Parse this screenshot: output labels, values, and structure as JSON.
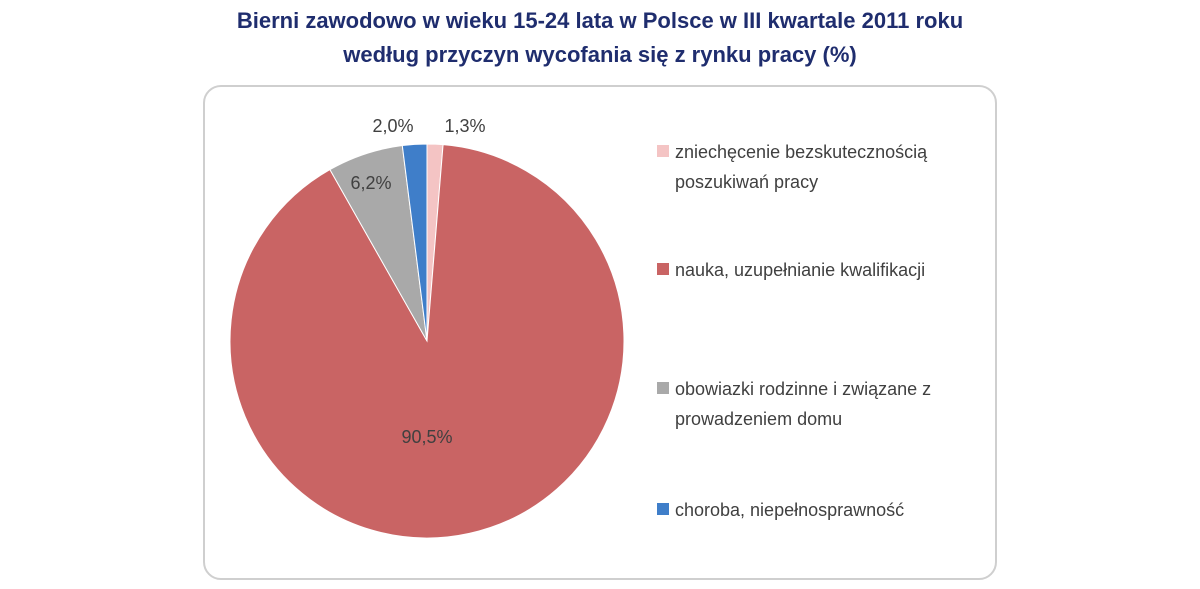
{
  "title": {
    "line1": "Bierni zawodowo w wieku 15-24 lata  w Polsce w III kwartale 2011 roku",
    "line2": "według przyczyn wycofania się z rynku pracy (%)"
  },
  "chart_data": {
    "type": "pie",
    "title": "Bierni zawodowo w wieku 15-24 lata  w Polsce w III kwartale 2011 roku według przyczyn wycofania się z rynku pracy (%)",
    "legend_position": "right",
    "slices": [
      {
        "label": "zniechęcenie bezskutecznością poszukiwań pracy",
        "value": 1.3,
        "display": "1,3%",
        "color": "#f4c4c4"
      },
      {
        "label": "nauka, uzupełnianie kwalifikacji",
        "value": 90.5,
        "display": "90,5%",
        "color": "#c96464"
      },
      {
        "label": "obowiazki rodzinne i związane z prowadzeniem domu",
        "value": 6.2,
        "display": "6,2%",
        "color": "#a9a9a9"
      },
      {
        "label": "choroba, niepełnosprawność",
        "value": 2.0,
        "display": "2,0%",
        "color": "#3f7ec9"
      }
    ]
  },
  "legend": [
    {
      "line1": "zniechęcenie bezskutecznością",
      "line2": "poszukiwań pracy"
    },
    {
      "line1": "nauka, uzupełnianie kwalifikacji",
      "line2": ""
    },
    {
      "line1": "obowiazki rodzinne i związane z",
      "line2": "prowadzeniem domu"
    },
    {
      "line1": "choroba, niepełnosprawność",
      "line2": ""
    }
  ]
}
